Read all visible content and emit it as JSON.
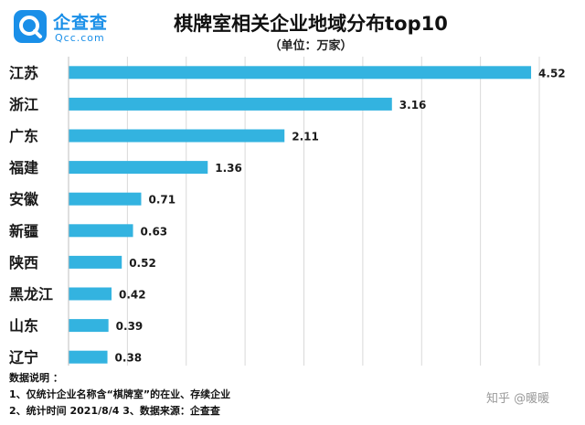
{
  "logo": {
    "name_cn": "企查查",
    "name_en": "Qcc.com"
  },
  "notes": {
    "heading": "数据说明 ：",
    "line1": "1、仅统计企业名称含“棋牌室”的在业、存续企业",
    "line2": "2、统计时间  2021/8/4        3、数据来源：企查查"
  },
  "watermark": "知乎 @暖暖",
  "colors": {
    "bar": "#33b3e0",
    "grid": "#d9d9d9",
    "brand": "#1a8fe8"
  },
  "chart_data": {
    "type": "bar",
    "orientation": "horizontal",
    "title": "棋牌室相关企业地域分布top10",
    "subtitle": "（单位：万家）",
    "categories": [
      "江苏",
      "浙江",
      "广东",
      "福建",
      "安徽",
      "新疆",
      "陕西",
      "黑龙江",
      "山东",
      "辽宁"
    ],
    "values": [
      4.52,
      3.16,
      2.11,
      1.36,
      0.71,
      0.63,
      0.52,
      0.42,
      0.39,
      0.38
    ],
    "value_labels": [
      "4.52",
      "3.16",
      "2.11",
      "1.36",
      "0.71",
      "0.63",
      "0.52",
      "0.42",
      "0.39",
      "0.38"
    ],
    "xlim": [
      0,
      4.6
    ],
    "grid": true,
    "legend": "none"
  }
}
